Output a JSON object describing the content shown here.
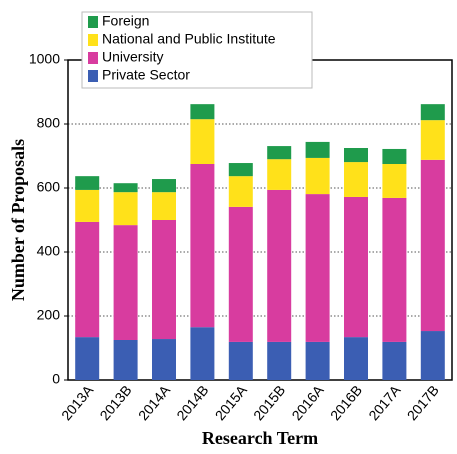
{
  "chart_data": {
    "type": "stacked-bar",
    "ylabel": "Number of Proposals",
    "xlabel": "Research Term",
    "categories": [
      "2013A",
      "2013B",
      "2014A",
      "2014B",
      "2015A",
      "2015B",
      "2016A",
      "2016B",
      "2017A",
      "2017B"
    ],
    "series": [
      {
        "name": "Private Sector",
        "color": "#3b5eb3",
        "values": [
          134,
          125,
          128,
          165,
          119,
          119,
          119,
          134,
          119,
          153
        ]
      },
      {
        "name": "University",
        "color": "#d83c9f",
        "values": [
          360,
          359,
          372,
          510,
          422,
          475,
          462,
          438,
          450,
          535
        ]
      },
      {
        "name": "National and Public Institute",
        "color": "#ffe11a",
        "values": [
          100,
          103,
          87,
          140,
          96,
          96,
          113,
          109,
          106,
          124
        ]
      },
      {
        "name": "Foreign",
        "color": "#1f9b4c",
        "values": [
          43,
          28,
          41,
          47,
          41,
          41,
          50,
          44,
          47,
          50
        ]
      }
    ],
    "ylim": [
      0,
      1000
    ],
    "yticks": [
      0,
      200,
      400,
      600,
      800,
      1000
    ],
    "grid": true
  }
}
